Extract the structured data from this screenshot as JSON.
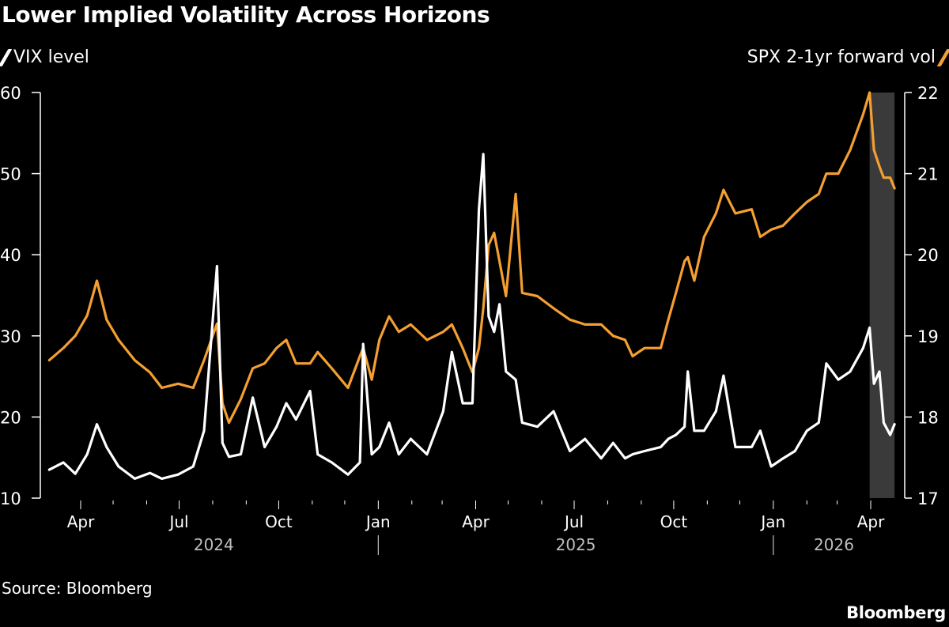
{
  "title": "Lower Implied Volatility Across Horizons",
  "source": "Source: Bloomberg",
  "brand": "Bloomberg",
  "colors": {
    "background": "#000000",
    "vix": "#ffffff",
    "spx": "#f49f31",
    "shade": "#3a3a3a",
    "axis": "#ffffff",
    "year_label": "#bfbfbf"
  },
  "chart_data": {
    "type": "line",
    "title": "Lower Implied Volatility Across Horizons",
    "legend": [
      {
        "name": "VIX level",
        "axis": "left",
        "placement": "top-left"
      },
      {
        "name": "SPX 2-1yr forward vol",
        "axis": "right",
        "placement": "top-right"
      }
    ],
    "left_axis": {
      "ylim": [
        10,
        60
      ],
      "ticks": [
        "10",
        "20",
        "30",
        "40",
        "50",
        "60"
      ]
    },
    "right_axis": {
      "ylim": [
        17,
        22
      ],
      "ticks": [
        "17",
        "18",
        "19",
        "20",
        "21",
        "22"
      ]
    },
    "x_axis": {
      "range": [
        "2024-03-03",
        "2026-04-23"
      ],
      "month_ticks": [
        {
          "date": "2024-04-01",
          "label": "Apr"
        },
        {
          "date": "2024-07-01",
          "label": "Jul"
        },
        {
          "date": "2024-10-01",
          "label": "Oct"
        },
        {
          "date": "2025-01-01",
          "label": "Jan"
        },
        {
          "date": "2025-04-01",
          "label": "Apr"
        },
        {
          "date": "2025-07-01",
          "label": "Jul"
        },
        {
          "date": "2025-10-01",
          "label": "Oct"
        },
        {
          "date": "2026-01-01",
          "label": "Jan"
        },
        {
          "date": "2026-04-01",
          "label": "Apr"
        }
      ],
      "years": [
        "2024",
        "2025",
        "2026"
      ]
    },
    "shaded_region": [
      "2026-03-31",
      "2026-04-23"
    ],
    "grid": false,
    "x": [
      "2024-03-03",
      "2024-03-16",
      "2024-03-27",
      "2024-04-07",
      "2024-04-16",
      "2024-04-25",
      "2024-05-06",
      "2024-05-21",
      "2024-06-04",
      "2024-06-15",
      "2024-06-30",
      "2024-07-14",
      "2024-07-24",
      "2024-08-05",
      "2024-08-10",
      "2024-08-16",
      "2024-08-27",
      "2024-09-07",
      "2024-09-18",
      "2024-09-29",
      "2024-10-08",
      "2024-10-17",
      "2024-10-30",
      "2024-11-06",
      "2024-11-19",
      "2024-12-04",
      "2024-12-15",
      "2024-12-18",
      "2024-12-26",
      "2025-01-02",
      "2025-01-11",
      "2025-01-20",
      "2025-01-31",
      "2025-02-15",
      "2025-03-02",
      "2025-03-10",
      "2025-03-20",
      "2025-03-29",
      "2025-04-04",
      "2025-04-08",
      "2025-04-13",
      "2025-04-18",
      "2025-04-23",
      "2025-04-29",
      "2025-05-08",
      "2025-05-14",
      "2025-05-28",
      "2025-06-12",
      "2025-06-27",
      "2025-07-11",
      "2025-07-26",
      "2025-08-06",
      "2025-08-17",
      "2025-08-24",
      "2025-09-04",
      "2025-09-19",
      "2025-09-26",
      "2025-10-03",
      "2025-10-11",
      "2025-10-14",
      "2025-10-20",
      "2025-10-29",
      "2025-11-09",
      "2025-11-16",
      "2025-11-27",
      "2025-12-12",
      "2025-12-20",
      "2025-12-30",
      "2026-01-10",
      "2026-01-21",
      "2026-02-01",
      "2026-02-12",
      "2026-02-19",
      "2026-03-02",
      "2026-03-13",
      "2026-03-25",
      "2026-03-31",
      "2026-04-04",
      "2026-04-09",
      "2026-04-13",
      "2026-04-19",
      "2026-04-23"
    ],
    "series": [
      {
        "name": "VIX level",
        "axis": "left",
        "values": [
          13.5,
          14.4,
          13.0,
          15.4,
          19.1,
          16.3,
          13.9,
          12.4,
          13.1,
          12.4,
          12.9,
          13.9,
          18.3,
          38.6,
          16.8,
          15.1,
          15.4,
          22.4,
          16.3,
          18.8,
          21.7,
          19.7,
          23.2,
          15.4,
          14.4,
          12.9,
          14.4,
          29.0,
          15.4,
          16.3,
          19.3,
          15.4,
          17.3,
          15.4,
          20.7,
          28.0,
          21.7,
          21.7,
          45.6,
          52.4,
          32.4,
          30.5,
          33.9,
          25.6,
          24.6,
          19.3,
          18.8,
          20.7,
          15.8,
          17.3,
          14.9,
          16.8,
          14.9,
          15.4,
          15.8,
          16.3,
          17.3,
          17.8,
          18.8,
          25.6,
          18.3,
          18.3,
          20.7,
          25.1,
          16.3,
          16.3,
          18.3,
          13.9,
          14.9,
          15.8,
          18.3,
          19.3,
          26.6,
          24.6,
          25.6,
          28.5,
          31.0,
          24.1,
          25.6,
          19.3,
          17.8,
          19.1
        ]
      },
      {
        "name": "SPX 2-1yr forward vol",
        "axis": "right",
        "values": [
          18.7,
          18.85,
          19.0,
          19.25,
          19.68,
          19.2,
          18.95,
          18.7,
          18.55,
          18.36,
          18.41,
          18.36,
          18.7,
          19.15,
          18.17,
          17.93,
          18.22,
          18.6,
          18.66,
          18.85,
          18.95,
          18.66,
          18.66,
          18.8,
          18.6,
          18.36,
          18.75,
          18.85,
          18.46,
          18.95,
          19.24,
          19.05,
          19.14,
          18.95,
          19.05,
          19.14,
          18.85,
          18.55,
          18.85,
          19.34,
          20.12,
          20.27,
          19.92,
          19.49,
          20.75,
          19.53,
          19.49,
          19.34,
          19.2,
          19.14,
          19.14,
          19.0,
          18.95,
          18.75,
          18.85,
          18.85,
          19.2,
          19.53,
          19.92,
          19.97,
          19.68,
          20.22,
          20.51,
          20.8,
          20.51,
          20.56,
          20.22,
          20.31,
          20.36,
          20.51,
          20.65,
          20.75,
          21.0,
          21.0,
          21.29,
          21.73,
          22.0,
          21.29,
          21.09,
          20.95,
          20.95,
          20.82
        ]
      }
    ]
  }
}
